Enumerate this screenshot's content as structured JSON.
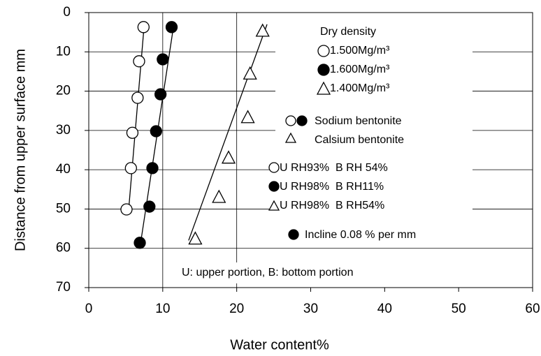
{
  "chart_data": {
    "type": "scatter",
    "x_label": "Water content%",
    "y_label": "Distance from upper surface mm",
    "xlim": [
      0,
      60
    ],
    "xticks": [
      0,
      10,
      20,
      30,
      40,
      50,
      60
    ],
    "ylim": [
      0,
      70
    ],
    "yticks": [
      0,
      10,
      20,
      30,
      40,
      50,
      60,
      70
    ],
    "y_inverted": true,
    "xgrid": [
      10,
      20
    ],
    "grid": true,
    "legend_title": "Dry density",
    "series": [
      {
        "name": "1.500Mg/m³",
        "marker": "open-circle",
        "color": "#000000",
        "x": [
          7.4,
          6.8,
          6.6,
          5.9,
          5.7,
          5.1
        ],
        "values": [
          3.7,
          12.4,
          21.7,
          30.6,
          39.6,
          50.1
        ],
        "fit_x": [
          7.5,
          5.4
        ],
        "fit_y": [
          3,
          50
        ]
      },
      {
        "name": "1.600Mg/m³",
        "marker": "filled-circle",
        "color": "#000000",
        "x": [
          11.2,
          10.0,
          9.7,
          9.1,
          8.6,
          8.2,
          6.9
        ],
        "values": [
          3.7,
          11.9,
          20.8,
          30.2,
          39.6,
          49.4,
          58.6
        ],
        "fit_x": [
          11.5,
          6.9
        ],
        "fit_y": [
          3,
          60
        ]
      },
      {
        "name": "1.400Mg/m³",
        "marker": "open-triangle",
        "color": "#000000",
        "x": [
          23.5,
          21.8,
          21.5,
          18.9,
          17.6,
          14.4
        ],
        "values": [
          4.6,
          15.5,
          26.6,
          36.9,
          46.9,
          57.5
        ],
        "fit_x": [
          24.1,
          13.5
        ],
        "fit_y": [
          3,
          58
        ]
      }
    ],
    "annotations": [
      "Sodium bentonite",
      "Calsium bentonite",
      "U RH93%  B RH 54%",
      "U RH98%  B RH11%",
      "U RH98%  B RH54%",
      "Incline 0.08 % per mm",
      "U: upper portion, B: bottom portion"
    ]
  }
}
